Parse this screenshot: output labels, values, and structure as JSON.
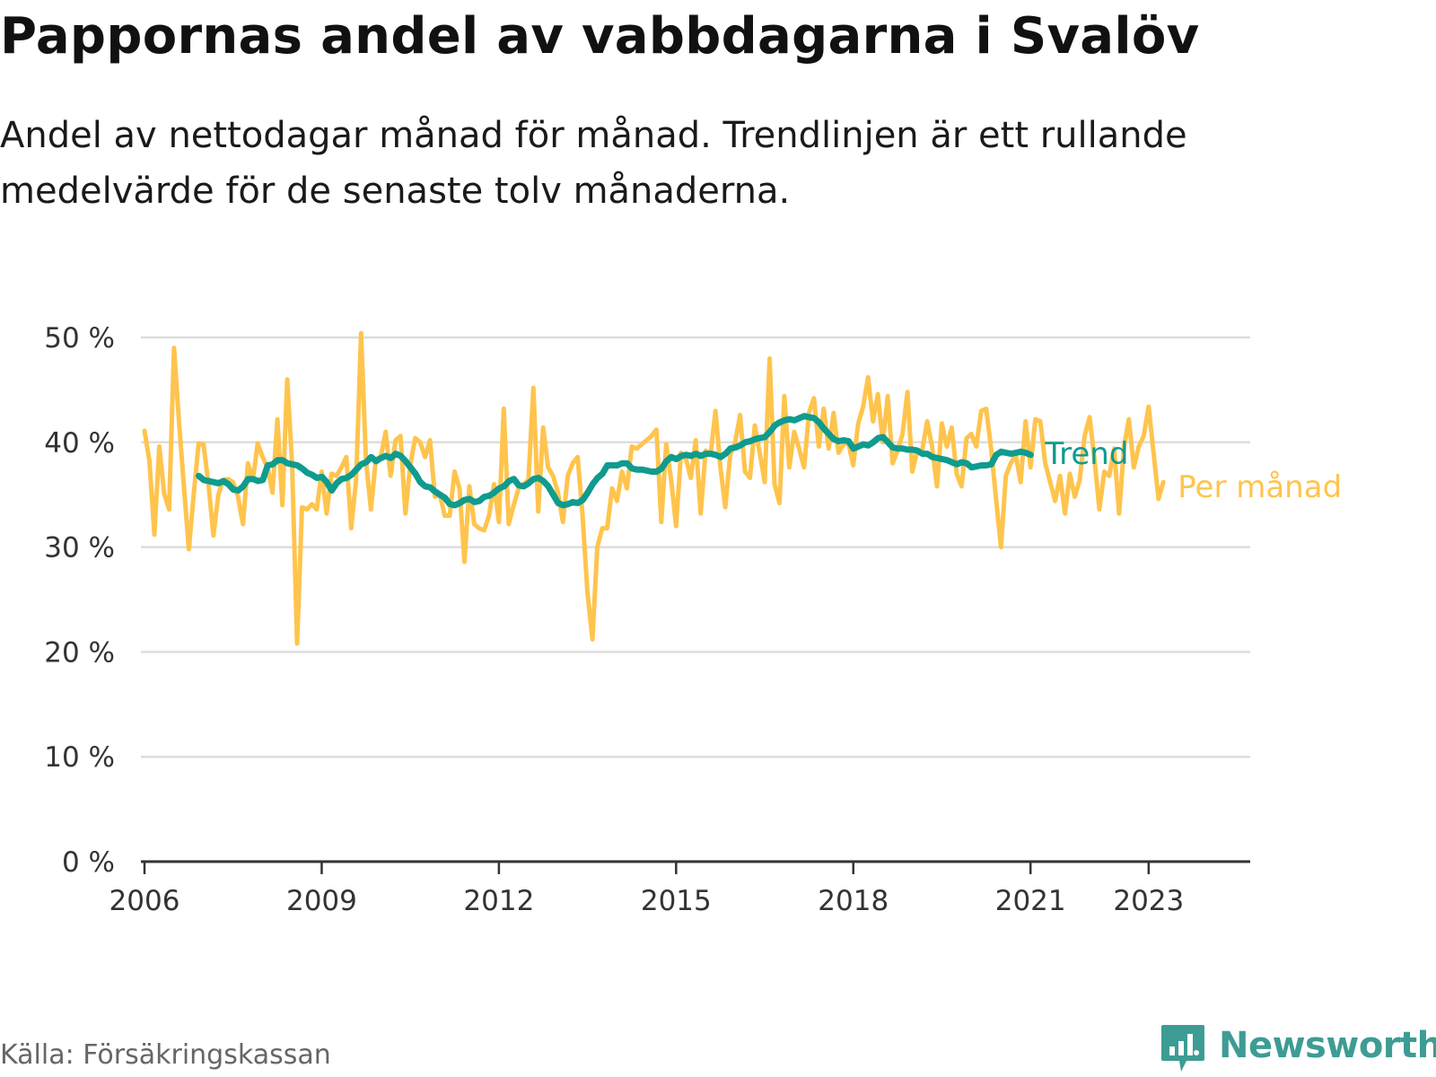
{
  "header": {
    "title": "Pappornas andel av vabbdagarna i Svalöv",
    "subtitle": "Andel av nettodagar månad för månad. Trendlinjen är ett rullande medelvärde för de senaste tolv månaderna."
  },
  "footer": {
    "source": "Källa: Försäkringskassan",
    "brand": "Newsworthy",
    "brand_icon": "bar-chart-speech-bubble-icon"
  },
  "colors": {
    "monthly": "#ffc44d",
    "trend": "#0f9b8e",
    "grid": "#dddddd",
    "axis": "#333333",
    "brand": "#3d9c94"
  },
  "chart_data": {
    "type": "line",
    "title": "Pappornas andel av vabbdagarna i Svalöv",
    "xlabel": "",
    "ylabel": "",
    "x_unit": "year",
    "ylim": [
      0,
      50
    ],
    "yticks": [
      0,
      10,
      20,
      30,
      40,
      50
    ],
    "ytick_labels": [
      "0 %",
      "10 %",
      "20 %",
      "30 %",
      "40 %",
      "50 %"
    ],
    "xticks": [
      2006,
      2009,
      2012,
      2015,
      2018,
      2021,
      2023
    ],
    "xtick_labels": [
      "2006",
      "2009",
      "2012",
      "2015",
      "2018",
      "2021",
      "2023"
    ],
    "grid": true,
    "legend": "direct labels at right end of lines",
    "series": [
      {
        "name": "Per månad",
        "color": "#ffc44d",
        "x_start": 2006.0,
        "step": 0.08333,
        "values": [
          41.1,
          38.2,
          31.2,
          39.6,
          35.1,
          33.6,
          49.0,
          42.0,
          35.8,
          29.8,
          35.0,
          39.9,
          39.8,
          36.0,
          31.1,
          35.0,
          36.4,
          36.5,
          36.2,
          34.8,
          32.2,
          38.0,
          36.4,
          39.9,
          38.6,
          37.6,
          35.2,
          42.2,
          34.0,
          46.0,
          37.8,
          20.8,
          33.8,
          33.6,
          34.1,
          33.6,
          37.2,
          33.2,
          37.0,
          36.8,
          37.6,
          38.6,
          31.8,
          36.4,
          50.4,
          38.2,
          33.6,
          38.4,
          38.6,
          41.0,
          36.8,
          40.2,
          40.6,
          33.2,
          37.8,
          40.4,
          40.0,
          38.6,
          40.2,
          34.8,
          35.0,
          33.0,
          33.0,
          37.2,
          35.6,
          28.6,
          35.8,
          32.2,
          31.8,
          31.6,
          33.0,
          36.0,
          32.4,
          43.2,
          32.2,
          34.0,
          35.6,
          36.0,
          36.4,
          45.2,
          33.4,
          41.4,
          37.6,
          36.8,
          35.2,
          32.4,
          36.8,
          38.0,
          38.6,
          33.0,
          25.6,
          21.2,
          30.0,
          31.8,
          31.8,
          35.6,
          34.4,
          37.2,
          35.6,
          39.6,
          39.4,
          39.8,
          40.2,
          40.6,
          41.2,
          32.4,
          39.8,
          36.4,
          32.0,
          39.0,
          38.4,
          36.6,
          40.2,
          33.2,
          39.2,
          38.8,
          43.0,
          37.6,
          33.8,
          38.8,
          40.0,
          42.6,
          37.2,
          36.6,
          41.6,
          39.0,
          36.2,
          48.0,
          36.0,
          34.2,
          44.4,
          37.6,
          41.0,
          39.4,
          37.6,
          42.8,
          44.2,
          39.6,
          43.2,
          39.4,
          42.8,
          39.0,
          39.8,
          40.0,
          37.8,
          41.8,
          43.4,
          46.2,
          42.0,
          44.6,
          40.0,
          44.4,
          38.0,
          39.2,
          40.8,
          44.8,
          37.2,
          39.2,
          39.2,
          42.0,
          39.6,
          35.8,
          41.8,
          39.6,
          41.4,
          37.0,
          35.8,
          40.4,
          40.8,
          39.6,
          43.0,
          43.2,
          39.4,
          34.6,
          30.0,
          36.8,
          38.0,
          38.8,
          36.2,
          42.0,
          37.6,
          42.2,
          42.0,
          38.0,
          36.2,
          34.4,
          36.8,
          33.2,
          37.0,
          34.8,
          36.4,
          40.6,
          42.4,
          38.4,
          33.6,
          37.2,
          36.8,
          39.4,
          33.2,
          39.6,
          42.2,
          37.6,
          39.6,
          40.6,
          43.4,
          39.0,
          34.6,
          36.2
        ]
      },
      {
        "name": "Trend",
        "color": "#0f9b8e",
        "x_start": 2006.92,
        "step": 0.08333,
        "values": [
          36.8,
          36.4,
          36.3,
          36.2,
          36.1,
          36.3,
          36.0,
          35.5,
          35.4,
          35.8,
          36.5,
          36.5,
          36.3,
          36.4,
          37.8,
          37.9,
          38.3,
          38.3,
          38.0,
          37.9,
          37.8,
          37.5,
          37.1,
          36.9,
          36.6,
          36.7,
          36.2,
          35.4,
          36.1,
          36.5,
          36.6,
          36.9,
          37.4,
          37.9,
          38.1,
          38.6,
          38.2,
          38.5,
          38.7,
          38.5,
          38.9,
          38.7,
          38.2,
          37.6,
          37.0,
          36.2,
          35.8,
          35.7,
          35.3,
          35.0,
          34.7,
          34.1,
          34.0,
          34.2,
          34.5,
          34.6,
          34.3,
          34.4,
          34.8,
          34.9,
          35.2,
          35.6,
          35.8,
          36.3,
          36.5,
          35.9,
          35.8,
          36.1,
          36.5,
          36.6,
          36.3,
          35.8,
          35.0,
          34.2,
          34.0,
          34.1,
          34.3,
          34.2,
          34.5,
          35.2,
          36.0,
          36.6,
          37.0,
          37.8,
          37.8,
          37.8,
          38.0,
          38.0,
          37.5,
          37.4,
          37.4,
          37.3,
          37.2,
          37.2,
          37.5,
          38.2,
          38.6,
          38.4,
          38.7,
          38.8,
          38.7,
          38.9,
          38.7,
          38.9,
          38.9,
          38.8,
          38.6,
          38.9,
          39.4,
          39.5,
          39.7,
          40.0,
          40.1,
          40.3,
          40.4,
          40.5,
          41.0,
          41.6,
          41.9,
          42.1,
          42.2,
          42.1,
          42.3,
          42.5,
          42.4,
          42.3,
          41.9,
          41.3,
          40.8,
          40.3,
          40.1,
          40.2,
          40.1,
          39.4,
          39.6,
          39.8,
          39.7,
          40.0,
          40.4,
          40.5,
          40.0,
          39.5,
          39.4,
          39.4,
          39.3,
          39.3,
          39.2,
          38.9,
          38.9,
          38.6,
          38.5,
          38.4,
          38.3,
          38.1,
          37.9,
          38.1,
          38.0,
          37.6,
          37.7,
          37.8,
          37.8,
          37.9,
          38.8,
          39.1,
          39.0,
          38.9,
          39.0,
          39.1,
          39.0,
          38.8
        ]
      }
    ]
  }
}
